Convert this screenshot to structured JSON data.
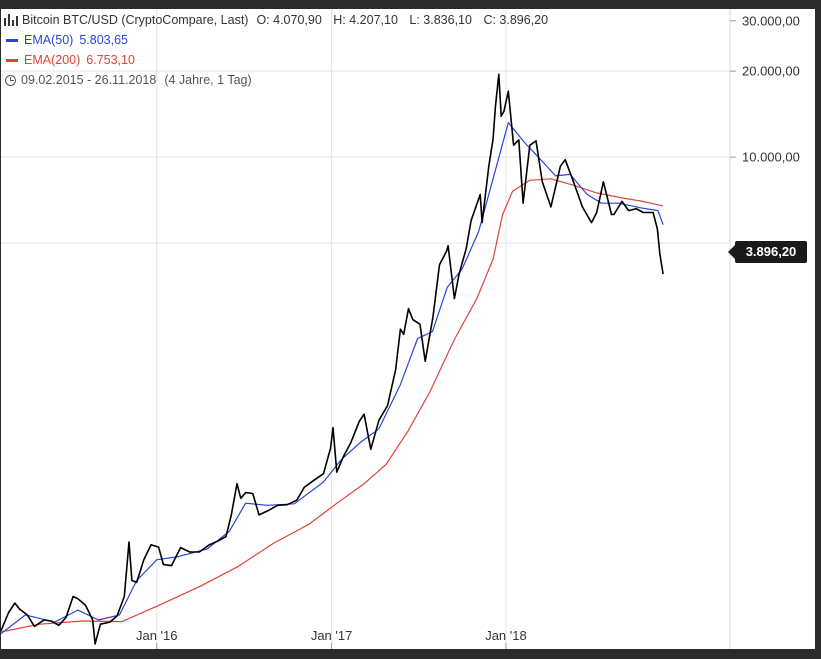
{
  "legend": {
    "instrument": "Bitcoin BTC/USD (CryptoCompare, Last)",
    "ohlc": {
      "open": "O: 4.070,90",
      "high": "H: 4.207,10",
      "low": "L: 3.836,10",
      "close": "C: 3.896,20"
    },
    "ema50": {
      "label": "EMA(50)",
      "value": "5.803,65"
    },
    "ema200": {
      "label": "EMA(200)",
      "value": "6.753,10"
    },
    "range": "09.02.2015 - 26.11.2018",
    "range_note": "(4 Jahre, 1 Tag)"
  },
  "last_price_label": "3.896,20",
  "colors": {
    "price": "#000000",
    "ema50": "#2b44d8",
    "ema200": "#e0433a",
    "grid": "#e4e4e4",
    "frame_bg": "#2b2b2b",
    "panel_bg": "#ffffff"
  },
  "chart_data": {
    "type": "line",
    "yscale": "log",
    "ylim": [
      190,
      33000
    ],
    "xlim": [
      "2015-02-09",
      "2019-04-15"
    ],
    "y_ticks": [
      {
        "value": 30000,
        "label": "30.000,00"
      },
      {
        "value": 20000,
        "label": "20.000,00"
      },
      {
        "value": 10000,
        "label": "10.000,00"
      }
    ],
    "y_gridlines": [
      20000,
      10000,
      5000
    ],
    "x_ticks": [
      {
        "date": "2016-01-01",
        "label": "Jan '16"
      },
      {
        "date": "2017-01-01",
        "label": "Jan '17"
      },
      {
        "date": "2018-01-01",
        "label": "Jan '18"
      }
    ],
    "series": [
      {
        "name": "Bitcoin BTC/USD",
        "color": "#000000",
        "points": [
          [
            "2015-02-09",
            220
          ],
          [
            "2015-02-25",
            255
          ],
          [
            "2015-03-10",
            275
          ],
          [
            "2015-03-20",
            262
          ],
          [
            "2015-04-05",
            250
          ],
          [
            "2015-04-20",
            228
          ],
          [
            "2015-05-10",
            240
          ],
          [
            "2015-05-25",
            238
          ],
          [
            "2015-06-10",
            230
          ],
          [
            "2015-06-25",
            245
          ],
          [
            "2015-07-10",
            290
          ],
          [
            "2015-07-20",
            285
          ],
          [
            "2015-08-05",
            270
          ],
          [
            "2015-08-20",
            240
          ],
          [
            "2015-08-25",
            198
          ],
          [
            "2015-09-05",
            232
          ],
          [
            "2015-09-25",
            236
          ],
          [
            "2015-10-10",
            248
          ],
          [
            "2015-10-25",
            290
          ],
          [
            "2015-11-04",
            450
          ],
          [
            "2015-11-10",
            330
          ],
          [
            "2015-11-20",
            325
          ],
          [
            "2015-12-05",
            390
          ],
          [
            "2015-12-20",
            440
          ],
          [
            "2016-01-05",
            432
          ],
          [
            "2016-01-15",
            375
          ],
          [
            "2016-02-01",
            372
          ],
          [
            "2016-02-20",
            430
          ],
          [
            "2016-03-10",
            415
          ],
          [
            "2016-03-30",
            415
          ],
          [
            "2016-04-20",
            440
          ],
          [
            "2016-05-10",
            455
          ],
          [
            "2016-05-25",
            470
          ],
          [
            "2016-06-05",
            560
          ],
          [
            "2016-06-17",
            720
          ],
          [
            "2016-06-25",
            640
          ],
          [
            "2016-07-05",
            670
          ],
          [
            "2016-07-20",
            665
          ],
          [
            "2016-08-02",
            560
          ],
          [
            "2016-08-20",
            578
          ],
          [
            "2016-09-10",
            605
          ],
          [
            "2016-09-30",
            608
          ],
          [
            "2016-10-20",
            630
          ],
          [
            "2016-11-05",
            700
          ],
          [
            "2016-11-25",
            740
          ],
          [
            "2016-12-15",
            780
          ],
          [
            "2016-12-30",
            960
          ],
          [
            "2017-01-04",
            1130
          ],
          [
            "2017-01-12",
            790
          ],
          [
            "2017-01-25",
            890
          ],
          [
            "2017-02-10",
            1000
          ],
          [
            "2017-02-28",
            1190
          ],
          [
            "2017-03-10",
            1260
          ],
          [
            "2017-03-24",
            950
          ],
          [
            "2017-04-10",
            1200
          ],
          [
            "2017-04-28",
            1350
          ],
          [
            "2017-05-15",
            1800
          ],
          [
            "2017-05-25",
            2500
          ],
          [
            "2017-06-01",
            2400
          ],
          [
            "2017-06-11",
            2950
          ],
          [
            "2017-06-20",
            2700
          ],
          [
            "2017-07-05",
            2600
          ],
          [
            "2017-07-16",
            1930
          ],
          [
            "2017-08-01",
            2750
          ],
          [
            "2017-08-15",
            4200
          ],
          [
            "2017-08-30",
            4700
          ],
          [
            "2017-09-02",
            4900
          ],
          [
            "2017-09-15",
            3200
          ],
          [
            "2017-09-25",
            3900
          ],
          [
            "2017-10-10",
            4800
          ],
          [
            "2017-10-20",
            6000
          ],
          [
            "2017-11-08",
            7400
          ],
          [
            "2017-11-12",
            5900
          ],
          [
            "2017-11-26",
            9300
          ],
          [
            "2017-12-05",
            11600
          ],
          [
            "2017-12-10",
            15000
          ],
          [
            "2017-12-17",
            19500
          ],
          [
            "2017-12-22",
            13900
          ],
          [
            "2017-12-28",
            14500
          ],
          [
            "2018-01-06",
            17000
          ],
          [
            "2018-01-17",
            11000
          ],
          [
            "2018-01-28",
            11500
          ],
          [
            "2018-02-06",
            6900
          ],
          [
            "2018-02-20",
            11000
          ],
          [
            "2018-03-05",
            11400
          ],
          [
            "2018-03-18",
            8200
          ],
          [
            "2018-04-05",
            6700
          ],
          [
            "2018-04-25",
            9300
          ],
          [
            "2018-05-05",
            9800
          ],
          [
            "2018-05-20",
            8400
          ],
          [
            "2018-06-10",
            6700
          ],
          [
            "2018-06-29",
            5900
          ],
          [
            "2018-07-10",
            6400
          ],
          [
            "2018-07-24",
            8200
          ],
          [
            "2018-08-10",
            6300
          ],
          [
            "2018-08-15",
            6300
          ],
          [
            "2018-09-01",
            7000
          ],
          [
            "2018-09-15",
            6500
          ],
          [
            "2018-10-01",
            6600
          ],
          [
            "2018-10-15",
            6400
          ],
          [
            "2018-11-05",
            6400
          ],
          [
            "2018-11-14",
            5600
          ],
          [
            "2018-11-19",
            4600
          ],
          [
            "2018-11-26",
            3896
          ]
        ]
      },
      {
        "name": "EMA(50)",
        "color": "#2b44d8",
        "points": [
          [
            "2015-02-09",
            215
          ],
          [
            "2015-04-01",
            250
          ],
          [
            "2015-06-01",
            236
          ],
          [
            "2015-07-20",
            260
          ],
          [
            "2015-09-01",
            240
          ],
          [
            "2015-10-15",
            250
          ],
          [
            "2015-11-20",
            330
          ],
          [
            "2016-01-01",
            390
          ],
          [
            "2016-02-15",
            400
          ],
          [
            "2016-04-15",
            425
          ],
          [
            "2016-06-01",
            490
          ],
          [
            "2016-07-05",
            615
          ],
          [
            "2016-08-20",
            605
          ],
          [
            "2016-10-15",
            612
          ],
          [
            "2016-12-15",
            730
          ],
          [
            "2017-01-20",
            870
          ],
          [
            "2017-03-01",
            1000
          ],
          [
            "2017-04-10",
            1120
          ],
          [
            "2017-05-25",
            1600
          ],
          [
            "2017-06-30",
            2320
          ],
          [
            "2017-07-31",
            2450
          ],
          [
            "2017-08-31",
            3500
          ],
          [
            "2017-10-01",
            4050
          ],
          [
            "2017-11-05",
            5500
          ],
          [
            "2017-12-10",
            9000
          ],
          [
            "2018-01-06",
            13200
          ],
          [
            "2018-02-10",
            11200
          ],
          [
            "2018-03-10",
            10000
          ],
          [
            "2018-04-15",
            8600
          ],
          [
            "2018-05-15",
            8700
          ],
          [
            "2018-06-20",
            7400
          ],
          [
            "2018-07-20",
            6900
          ],
          [
            "2018-08-25",
            6900
          ],
          [
            "2018-10-10",
            6650
          ],
          [
            "2018-11-15",
            6500
          ],
          [
            "2018-11-26",
            5804
          ]
        ]
      },
      {
        "name": "EMA(200)",
        "color": "#e0433a",
        "points": [
          [
            "2015-02-09",
            218
          ],
          [
            "2015-05-01",
            232
          ],
          [
            "2015-08-01",
            238
          ],
          [
            "2015-10-20",
            237
          ],
          [
            "2016-01-05",
            270
          ],
          [
            "2016-04-01",
            315
          ],
          [
            "2016-06-20",
            370
          ],
          [
            "2016-09-01",
            445
          ],
          [
            "2016-11-15",
            520
          ],
          [
            "2017-01-15",
            620
          ],
          [
            "2017-03-10",
            720
          ],
          [
            "2017-04-25",
            840
          ],
          [
            "2017-06-10",
            1100
          ],
          [
            "2017-07-25",
            1500
          ],
          [
            "2017-09-15",
            2300
          ],
          [
            "2017-11-01",
            3200
          ],
          [
            "2017-12-05",
            4400
          ],
          [
            "2017-12-25",
            6300
          ],
          [
            "2018-01-15",
            7600
          ],
          [
            "2018-02-20",
            8300
          ],
          [
            "2018-04-05",
            8400
          ],
          [
            "2018-05-20",
            8000
          ],
          [
            "2018-07-10",
            7500
          ],
          [
            "2018-09-01",
            7200
          ],
          [
            "2018-10-15",
            7000
          ],
          [
            "2018-11-26",
            6753
          ]
        ]
      }
    ]
  }
}
